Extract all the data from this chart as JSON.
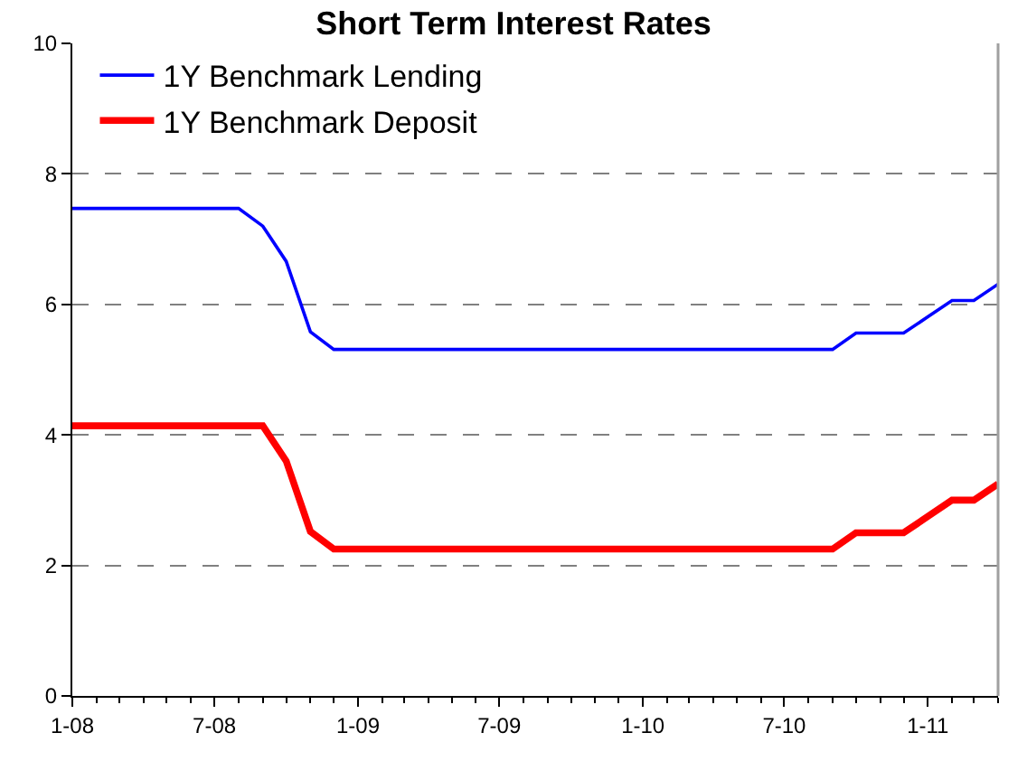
{
  "chart_data": {
    "type": "line",
    "title": "Short Term Interest Rates",
    "x": [
      "2008-01",
      "2008-02",
      "2008-03",
      "2008-04",
      "2008-05",
      "2008-06",
      "2008-07",
      "2008-08",
      "2008-09",
      "2008-10",
      "2008-11",
      "2008-12",
      "2009-01",
      "2009-02",
      "2009-03",
      "2009-04",
      "2009-05",
      "2009-06",
      "2009-07",
      "2009-08",
      "2009-09",
      "2009-10",
      "2009-11",
      "2009-12",
      "2010-01",
      "2010-02",
      "2010-03",
      "2010-04",
      "2010-05",
      "2010-06",
      "2010-07",
      "2010-08",
      "2010-09",
      "2010-10",
      "2010-11",
      "2010-12",
      "2011-01",
      "2011-02",
      "2011-03",
      "2011-04"
    ],
    "series": [
      {
        "name": "1Y Benchmark Lending",
        "color": "#0000ff",
        "values": [
          7.47,
          7.47,
          7.47,
          7.47,
          7.47,
          7.47,
          7.47,
          7.47,
          7.2,
          6.66,
          5.58,
          5.31,
          5.31,
          5.31,
          5.31,
          5.31,
          5.31,
          5.31,
          5.31,
          5.31,
          5.31,
          5.31,
          5.31,
          5.31,
          5.31,
          5.31,
          5.31,
          5.31,
          5.31,
          5.31,
          5.31,
          5.31,
          5.31,
          5.56,
          5.56,
          5.56,
          5.81,
          6.06,
          6.06,
          6.31
        ]
      },
      {
        "name": "1Y Benchmark Deposit",
        "color": "#ff0000",
        "values": [
          4.14,
          4.14,
          4.14,
          4.14,
          4.14,
          4.14,
          4.14,
          4.14,
          4.14,
          3.6,
          2.52,
          2.25,
          2.25,
          2.25,
          2.25,
          2.25,
          2.25,
          2.25,
          2.25,
          2.25,
          2.25,
          2.25,
          2.25,
          2.25,
          2.25,
          2.25,
          2.25,
          2.25,
          2.25,
          2.25,
          2.25,
          2.25,
          2.25,
          2.5,
          2.5,
          2.5,
          2.75,
          3.0,
          3.0,
          3.25
        ]
      }
    ],
    "xlim": [
      "2008-01",
      "2011-04"
    ],
    "xticks": [
      {
        "value": "2008-01",
        "label": "1-08"
      },
      {
        "value": "2008-07",
        "label": "7-08"
      },
      {
        "value": "2009-01",
        "label": "1-09"
      },
      {
        "value": "2009-07",
        "label": "7-09"
      },
      {
        "value": "2010-01",
        "label": "1-10"
      },
      {
        "value": "2010-07",
        "label": "7-10"
      },
      {
        "value": "2011-01",
        "label": "1-11"
      }
    ],
    "ylim": [
      0,
      10
    ],
    "yticks": [
      0,
      2,
      4,
      6,
      8,
      10
    ],
    "grid": "y",
    "legend": "top left",
    "marker": "none",
    "line_style": "solid"
  }
}
